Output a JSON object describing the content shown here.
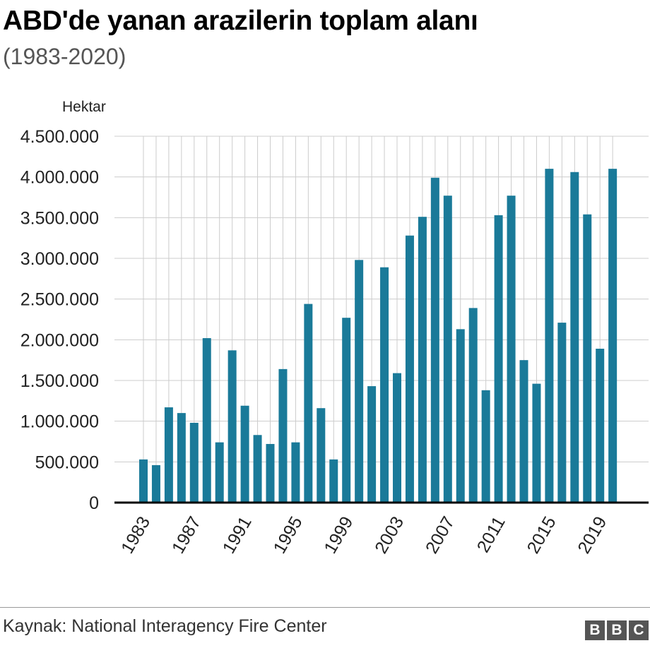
{
  "title": "ABD'de yanan arazilerin toplam alanı",
  "subtitle": "(1983-2020)",
  "source": "Kaynak: National Interagency Fire Center",
  "logo": [
    "B",
    "B",
    "C"
  ],
  "colors": {
    "bar": "#1a7a99",
    "grid": "#cccccc",
    "axis": "#000000"
  },
  "chart_data": {
    "type": "bar",
    "title": "ABD'de yanan arazilerin toplam alanı",
    "subtitle": "(1983-2020)",
    "ylabel": "Hektar",
    "xlabel": "",
    "ylim": [
      0,
      4500000
    ],
    "yticks": [
      0,
      500000,
      1000000,
      1500000,
      2000000,
      2500000,
      3000000,
      3500000,
      4000000,
      4500000
    ],
    "ytick_labels": [
      "0",
      "500.000",
      "1.000.000",
      "1.500.000",
      "2.000.000",
      "2.500.000",
      "3.000.000",
      "3.500.000",
      "4.000.000",
      "4.500.000"
    ],
    "xtick_labels": [
      "1983",
      "1987",
      "1991",
      "1995",
      "1999",
      "2003",
      "2007",
      "2011",
      "2015",
      "2019"
    ],
    "grid": true,
    "categories": [
      "1983",
      "1984",
      "1985",
      "1986",
      "1987",
      "1988",
      "1989",
      "1990",
      "1991",
      "1992",
      "1993",
      "1994",
      "1995",
      "1996",
      "1997",
      "1998",
      "1999",
      "2000",
      "2001",
      "2002",
      "2003",
      "2004",
      "2005",
      "2006",
      "2007",
      "2008",
      "2009",
      "2010",
      "2011",
      "2012",
      "2013",
      "2014",
      "2015",
      "2016",
      "2017",
      "2018",
      "2019",
      "2020"
    ],
    "values": [
      530000,
      460000,
      1170000,
      1100000,
      980000,
      2020000,
      740000,
      1870000,
      1190000,
      830000,
      720000,
      1640000,
      740000,
      2440000,
      1160000,
      530000,
      2270000,
      2980000,
      1430000,
      2890000,
      1590000,
      3280000,
      3510000,
      3990000,
      3770000,
      2130000,
      2390000,
      1380000,
      3530000,
      3770000,
      1750000,
      1460000,
      4100000,
      2210000,
      4060000,
      3540000,
      1890000,
      4100000
    ]
  }
}
